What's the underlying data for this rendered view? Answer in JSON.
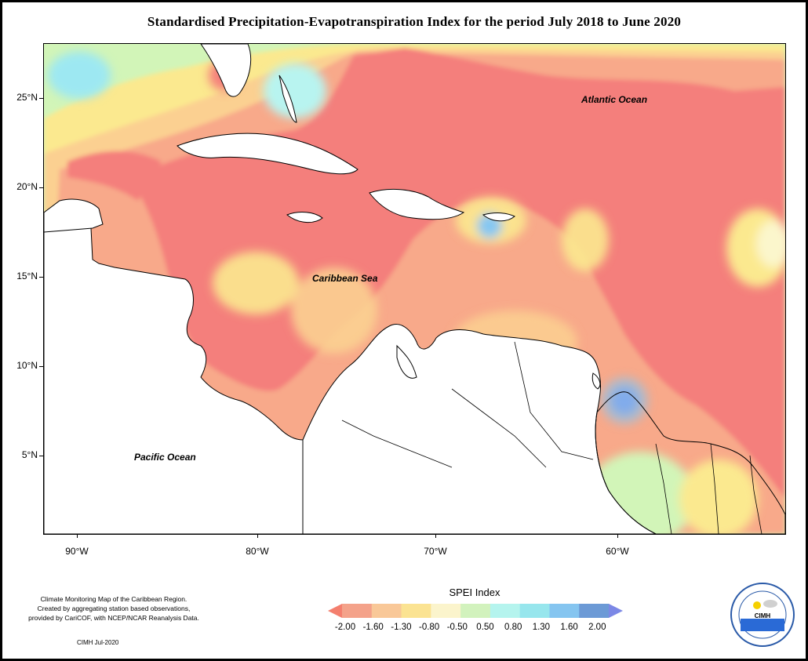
{
  "title": "Standardised Precipitation-Evapotranspiration Index for the period July 2018 to June 2020",
  "map": {
    "labels": {
      "atlantic": "Atlantic Ocean",
      "caribbean": "Caribbean Sea",
      "pacific": "Pacific Ocean"
    },
    "lat_ticks": [
      "25°N",
      "20°N",
      "15°N",
      "10°N",
      "5°N"
    ],
    "lon_ticks": [
      "90°W",
      "80°W",
      "70°W",
      "60°W"
    ],
    "colors": {
      "deep_dry": "#f47f7c",
      "dry": "#f8a98a",
      "moderate_dry": "#fbd091",
      "mild_dry": "#fbe98f",
      "near_normal": "#fbf6cc",
      "mild_wet": "#d2f5b8",
      "moderate_wet": "#b8f4f0",
      "wet": "#9de8f2",
      "very_wet": "#85c7f2",
      "extreme_wet": "#7c86e0",
      "land": "#ffffff"
    }
  },
  "legend": {
    "title": "SPEI Index",
    "ticks": [
      "-2.00",
      "-1.60",
      "-1.30",
      "-0.80",
      "-0.50",
      "0.50",
      "0.80",
      "1.30",
      "1.60",
      "2.00"
    ],
    "bins": [
      "#f47f6e",
      "#f4a28a",
      "#f9c898",
      "#fbe392",
      "#fbf4cc",
      "#d2f2bd",
      "#b5f4ee",
      "#97e6ed",
      "#85c5f0",
      "#6c9ad6",
      "#7c88e6"
    ]
  },
  "credits": {
    "line1": "Climate Monitoring Map of the Caribbean Region.",
    "line2": "Created by aggregating station based observations,",
    "line3": "provided by CariCOF, with NCEP/NCAR Reanalysis Data.",
    "date": "CIMH Jul-2020"
  },
  "logo": {
    "text": "CIMH",
    "ring_text": "Caribbean Institute for Meteorology and Hydrology"
  }
}
